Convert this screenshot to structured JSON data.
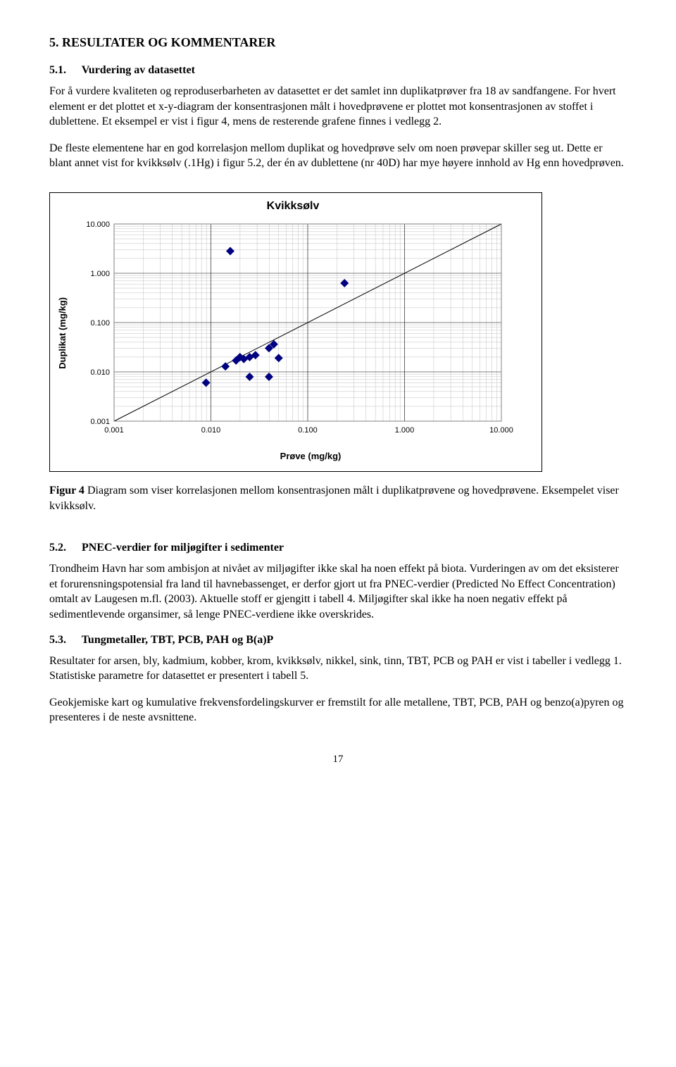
{
  "section5": {
    "heading": "5.   RESULTATER OG KOMMENTARER",
    "s51": {
      "num": "5.1.",
      "title": "Vurdering av datasettet",
      "p1": "For å vurdere kvaliteten og reproduserbarheten av datasettet er det samlet inn duplikatprøver fra 18 av sandfangene. For hvert element er det plottet et x-y-diagram der konsentrasjonen målt i hovedprøvene er plottet mot konsentrasjonen av stoffet i dublettene. Et eksempel er vist i figur 4, mens de resterende grafene finnes i vedlegg 2.",
      "p2": "De fleste elementene har en god korrelasjon mellom duplikat og hovedprøve selv om noen prøvepar skiller seg ut. Dette er blant annet vist for kvikksølv (.1Hg) i figur 5.2, der én av dublettene (nr 40D) har mye høyere innhold av Hg enn hovedprøven."
    },
    "chart": {
      "type": "scatter-loglog",
      "title": "Kvikksølv",
      "xlabel": "Prøve (mg/kg)",
      "ylabel": "Duplikat (mg/kg)",
      "xticks": [
        "0.001",
        "0.010",
        "0.100",
        "1.000",
        "10.000"
      ],
      "yticks": [
        "0.001",
        "0.010",
        "0.100",
        "1.000",
        "10.000"
      ],
      "xlim_log": [
        -3,
        1
      ],
      "ylim_log": [
        -3,
        1
      ],
      "marker_color": "#000080",
      "marker_size": 6,
      "line_color": "#000000",
      "grid_major_color": "#000000",
      "grid_minor_color": "#c0c0c0",
      "background_color": "#ffffff",
      "border_color": "#808080",
      "tick_fontsize": 11,
      "label_fontsize": 13,
      "title_fontsize": 16,
      "points_log": [
        [
          -2.05,
          -2.22
        ],
        [
          -1.85,
          -1.89
        ],
        [
          -1.74,
          -1.77
        ],
        [
          -1.7,
          -1.7
        ],
        [
          -1.66,
          -1.74
        ],
        [
          -1.6,
          -1.7
        ],
        [
          -1.6,
          -2.1
        ],
        [
          -1.54,
          -1.66
        ],
        [
          -1.8,
          0.45
        ],
        [
          -1.4,
          -2.1
        ],
        [
          -1.4,
          -1.52
        ],
        [
          -1.35,
          -1.44
        ],
        [
          -1.3,
          -1.72
        ],
        [
          -0.62,
          -0.2
        ]
      ],
      "identity_line": true
    },
    "caption": "Figur 4  Diagram som viser korrelasjonen mellom konsentrasjonen målt i duplikatprøvene og hovedprøvene. Eksempelet viser kvikksølv.",
    "caption_bold": "Figur 4",
    "s52": {
      "num": "5.2.",
      "title": "PNEC-verdier for miljøgifter i sedimenter",
      "p1": "Trondheim Havn har som ambisjon at nivået av miljøgifter ikke skal ha noen effekt på biota. Vurderingen av om det eksisterer et forurensningspotensial fra land til havnebassenget, er derfor gjort ut fra PNEC-verdier (Predicted No Effect Concentration) omtalt av Laugesen m.fl. (2003). Aktuelle stoff er gjengitt i tabell 4. Miljøgifter skal ikke ha noen negativ effekt på sedimentlevende organsimer, så lenge PNEC-verdiene ikke overskrides."
    },
    "s53": {
      "num": "5.3.",
      "title": "Tungmetaller, TBT, PCB, PAH og B(a)P",
      "p1": "Resultater for arsen, bly, kadmium, kobber, krom, kvikksølv, nikkel, sink,  tinn, TBT, PCB og PAH er vist i tabeller i vedlegg 1. Statistiske parametre for datasettet er presentert i tabell 5.",
      "p2": "Geokjemiske kart og kumulative frekvensfordelingskurver er fremstilt for alle metallene, TBT, PCB, PAH og benzo(a)pyren og presenteres i de neste avsnittene."
    }
  },
  "page_number": "17"
}
